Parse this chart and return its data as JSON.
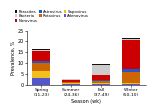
{
  "seasons": [
    "Spring\n(11-23)",
    "Summer\n(24-36)",
    "Fall\n(37-49)",
    "Winter\n(50-10)"
  ],
  "pathogens": [
    "Adenovirus",
    "Sapovirus",
    "Rotavirus",
    "Astrovirus",
    "Norovirus",
    "Bacteria",
    "Parasites"
  ],
  "colors": [
    "#5555cc",
    "#f0c020",
    "#cc6600",
    "#2255cc",
    "#cc0000",
    "#cccccc",
    "#111111"
  ],
  "data": {
    "Adenovirus": [
      3.0,
      0.5,
      0.5,
      0.5
    ],
    "Sapovirus": [
      3.5,
      0.3,
      0.5,
      0.5
    ],
    "Rotavirus": [
      3.5,
      0.5,
      1.0,
      5.0
    ],
    "Astrovirus": [
      1.0,
      0.3,
      0.5,
      1.5
    ],
    "Norovirus": [
      4.5,
      0.5,
      2.0,
      13.0
    ],
    "Bacteria": [
      0.5,
      0.5,
      4.5,
      0.5
    ],
    "Parasites": [
      0.5,
      0.3,
      0.5,
      0.5
    ]
  },
  "ylim": [
    0,
    25
  ],
  "yticks": [
    0,
    5,
    10,
    15,
    20,
    25
  ],
  "ylabel": "Prevalence, %",
  "xlabel": "Season (wk)",
  "background_color": "#ffffff",
  "legend_order": [
    "Parasites",
    "Bacteria",
    "Norovirus",
    "Astrovirus",
    "Rotavirus",
    "Sapovirus",
    "Adenovirus"
  ],
  "legend_colors": {
    "Parasites": "#111111",
    "Bacteria": "#cccccc",
    "Norovirus": "#cc0000",
    "Astrovirus": "#2255cc",
    "Rotavirus": "#cc6600",
    "Sapovirus": "#f0c020",
    "Adenovirus": "#5555cc"
  }
}
